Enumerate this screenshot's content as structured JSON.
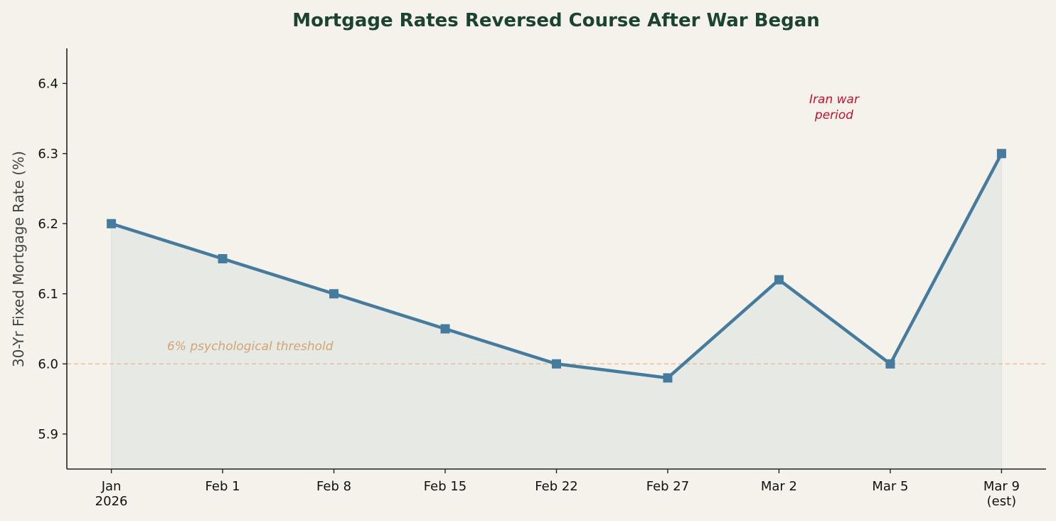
{
  "chart_data": {
    "type": "line",
    "title": "Mortgage Rates Reversed Course After War Began",
    "xlabel": "",
    "ylabel": "30-Yr Fixed Mortgage Rate (%)",
    "categories": [
      [
        "Jan",
        "2026"
      ],
      [
        "Feb 1"
      ],
      [
        "Feb 8"
      ],
      [
        "Feb 15"
      ],
      [
        "Feb 22"
      ],
      [
        "Feb 27"
      ],
      [
        "Mar 2"
      ],
      [
        "Mar 5"
      ],
      [
        "Mar 9",
        "(est)"
      ]
    ],
    "values": [
      6.2,
      6.15,
      6.1,
      6.05,
      6.0,
      5.98,
      6.12,
      6.0,
      6.3
    ],
    "ylim": [
      5.85,
      6.45
    ],
    "yticks": [
      5.9,
      6.0,
      6.1,
      6.2,
      6.3,
      6.4
    ],
    "ytick_labels": [
      "5.9",
      "6.0",
      "6.1",
      "6.2",
      "6.3",
      "6.4"
    ],
    "grid": false,
    "marker": "square",
    "area_fill": true,
    "reference_line": {
      "y": 6.0,
      "style": "dashed",
      "label": "6% psychological threshold"
    },
    "shaded_region": {
      "from": "Feb 27",
      "to": "Mar 9",
      "label_lines": [
        "Iran war",
        "period"
      ]
    },
    "colors": {
      "line": "#457b9d",
      "fill": "#457b9d",
      "shade": "#e8c4c0",
      "threshold": "#e9b48a",
      "threshold_text": "#d4a373",
      "war_text": "#c8102e",
      "title": "#1b4332",
      "background": "#f5f2eb"
    }
  }
}
